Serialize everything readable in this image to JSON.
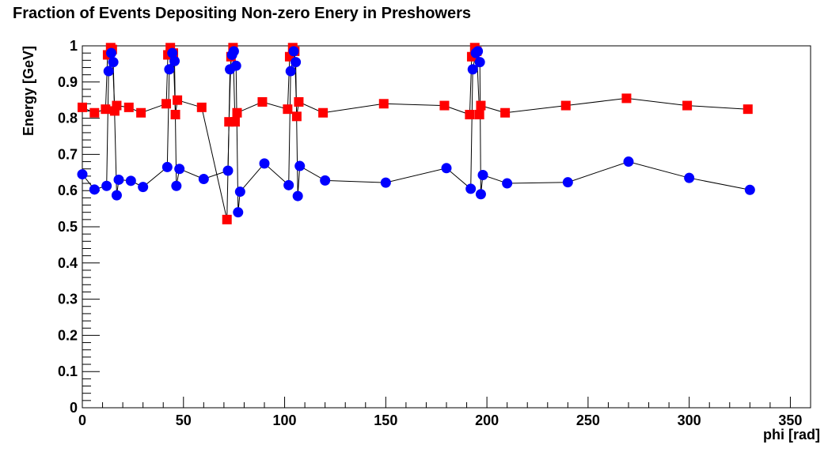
{
  "chart_data": {
    "type": "scatter",
    "title": "Fraction of Events Depositing Non-zero Enery in Preshowers",
    "xlabel": "phi [rad]",
    "ylabel": "Energy [GeV]",
    "xlim": [
      0,
      360
    ],
    "ylim": [
      0,
      1
    ],
    "x_ticks": [
      "0",
      "50",
      "100",
      "150",
      "200",
      "250",
      "300",
      "350"
    ],
    "y_ticks": [
      "0",
      "0.1",
      "0.2",
      "0.3",
      "0.4",
      "0.5",
      "0.6",
      "0.7",
      "0.8",
      "0.9",
      "1"
    ],
    "grid": false,
    "legend": "none",
    "series": [
      {
        "color": "#ff0000",
        "marker": "square",
        "points": [
          [
            0,
            0.83
          ],
          [
            6,
            0.815
          ],
          [
            11.5,
            0.825
          ],
          [
            12.5,
            0.975
          ],
          [
            14,
            0.995
          ],
          [
            14.8,
            0.99
          ],
          [
            16,
            0.82
          ],
          [
            17,
            0.835
          ],
          [
            23,
            0.83
          ],
          [
            29,
            0.815
          ],
          [
            41.5,
            0.84
          ],
          [
            42.3,
            0.975
          ],
          [
            43.5,
            0.995
          ],
          [
            45,
            0.98
          ],
          [
            46,
            0.81
          ],
          [
            47,
            0.85
          ],
          [
            59,
            0.83
          ],
          [
            71.5,
            0.52
          ],
          [
            72.5,
            0.79
          ],
          [
            73.5,
            0.97
          ],
          [
            74.5,
            0.995
          ],
          [
            75.5,
            0.79
          ],
          [
            76.5,
            0.815
          ],
          [
            89,
            0.845
          ],
          [
            101.5,
            0.825
          ],
          [
            102.5,
            0.97
          ],
          [
            104,
            0.995
          ],
          [
            105,
            0.985
          ],
          [
            106,
            0.805
          ],
          [
            107,
            0.845
          ],
          [
            119,
            0.815
          ],
          [
            149,
            0.84
          ],
          [
            179,
            0.835
          ],
          [
            191.5,
            0.81
          ],
          [
            192.5,
            0.97
          ],
          [
            194,
            0.995
          ],
          [
            195,
            0.985
          ],
          [
            196.3,
            0.81
          ],
          [
            197,
            0.835
          ],
          [
            209,
            0.815
          ],
          [
            239,
            0.835
          ],
          [
            269,
            0.855
          ],
          [
            299,
            0.835
          ],
          [
            329,
            0.825
          ]
        ]
      },
      {
        "color": "#0000ff",
        "marker": "circle",
        "points": [
          [
            0,
            0.645
          ],
          [
            6,
            0.603
          ],
          [
            12,
            0.613
          ],
          [
            13,
            0.93
          ],
          [
            14.3,
            0.98
          ],
          [
            15.3,
            0.955
          ],
          [
            17,
            0.587
          ],
          [
            18,
            0.63
          ],
          [
            24,
            0.627
          ],
          [
            30,
            0.61
          ],
          [
            42,
            0.665
          ],
          [
            43,
            0.935
          ],
          [
            44.5,
            0.98
          ],
          [
            45.6,
            0.958
          ],
          [
            46.5,
            0.613
          ],
          [
            48,
            0.66
          ],
          [
            60,
            0.632
          ],
          [
            72,
            0.655
          ],
          [
            73,
            0.935
          ],
          [
            74,
            0.975
          ],
          [
            74.9,
            0.985
          ],
          [
            76,
            0.945
          ],
          [
            77,
            0.54
          ],
          [
            78,
            0.597
          ],
          [
            90,
            0.675
          ],
          [
            102,
            0.615
          ],
          [
            103,
            0.93
          ],
          [
            104.5,
            0.985
          ],
          [
            105.5,
            0.955
          ],
          [
            106.5,
            0.585
          ],
          [
            107.5,
            0.668
          ],
          [
            120,
            0.628
          ],
          [
            150,
            0.622
          ],
          [
            180,
            0.662
          ],
          [
            192,
            0.605
          ],
          [
            193,
            0.935
          ],
          [
            194.5,
            0.98
          ],
          [
            195.5,
            0.985
          ],
          [
            196.5,
            0.955
          ],
          [
            197,
            0.59
          ],
          [
            198,
            0.643
          ],
          [
            210,
            0.62
          ],
          [
            240,
            0.623
          ],
          [
            270,
            0.68
          ],
          [
            300,
            0.635
          ],
          [
            330,
            0.602
          ]
        ]
      }
    ]
  }
}
